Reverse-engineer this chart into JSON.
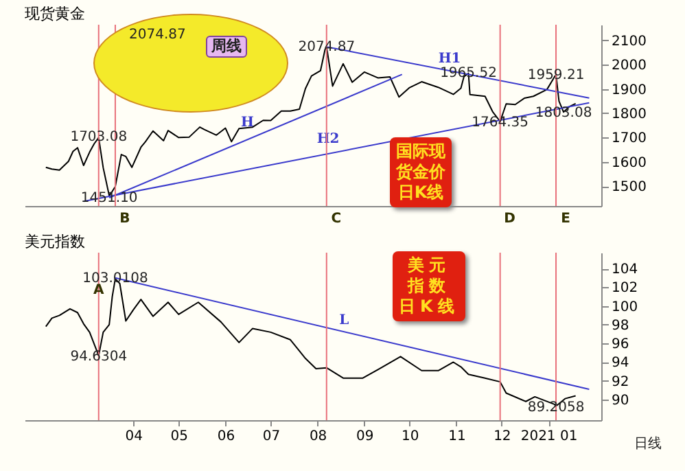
{
  "chart_data": [
    {
      "type": "line",
      "title": "现货黄金",
      "xlim": [
        "2020-01-20",
        "2021-02-05"
      ],
      "ylim": [
        1418,
        2165
      ],
      "yticks": [
        1500,
        1600,
        1700,
        1800,
        1900,
        2000,
        2100
      ],
      "tick_labels": "y",
      "x": [
        "2020-02-03",
        "2020-02-07",
        "2020-02-12",
        "2020-02-18",
        "2020-02-21",
        "2020-02-24",
        "2020-02-28",
        "2020-03-03",
        "2020-03-06",
        "2020-03-09",
        "2020-03-12",
        "2020-03-16",
        "2020-03-18",
        "2020-03-20",
        "2020-03-24",
        "2020-03-27",
        "2020-03-31",
        "2020-04-06",
        "2020-04-09",
        "2020-04-14",
        "2020-04-21",
        "2020-04-24",
        "2020-05-01",
        "2020-05-08",
        "2020-05-15",
        "2020-05-18",
        "2020-05-26",
        "2020-06-01",
        "2020-06-05",
        "2020-06-10",
        "2020-06-19",
        "2020-06-26",
        "2020-07-01",
        "2020-07-08",
        "2020-07-14",
        "2020-07-20",
        "2020-07-24",
        "2020-07-28",
        "2020-08-03",
        "2020-08-06",
        "2020-08-07",
        "2020-08-11",
        "2020-08-18",
        "2020-08-24",
        "2020-09-01",
        "2020-09-10",
        "2020-09-18",
        "2020-09-24",
        "2020-10-01",
        "2020-10-09",
        "2020-10-20",
        "2020-10-30",
        "2020-11-04",
        "2020-11-06",
        "2020-11-09",
        "2020-11-10",
        "2020-11-20",
        "2020-11-25",
        "2020-11-30",
        "2020-12-04",
        "2020-12-10",
        "2020-12-16",
        "2020-12-22",
        "2020-12-31",
        "2021-01-05",
        "2021-01-06",
        "2021-01-08",
        "2021-01-11",
        "2021-01-15",
        "2021-01-19"
      ],
      "series": [
        {
          "color": "#000000",
          "values": [
            1577,
            1570,
            1566,
            1602,
            1643,
            1658,
            1585,
            1640,
            1674,
            1700,
            1576,
            1460,
            1478,
            1498,
            1630,
            1622,
            1577,
            1660,
            1683,
            1727,
            1687,
            1729,
            1700,
            1702,
            1743,
            1733,
            1710,
            1739,
            1683,
            1737,
            1743,
            1771,
            1770,
            1809,
            1809,
            1817,
            1902,
            1954,
            1976,
            2063,
            2074,
            1912,
            2004,
            1928,
            1970,
            1946,
            1950,
            1867,
            1906,
            1930,
            1907,
            1878,
            1903,
            1951,
            1965,
            1877,
            1870,
            1807,
            1766,
            1839,
            1836,
            1862,
            1870,
            1898,
            1950,
            1958,
            1850,
            1805,
            1828,
            1840
          ]
        },
        {
          "name": "H",
          "type": "line",
          "color": "#3a3acc",
          "x": [
            "2020-03-16",
            "2020-09-26"
          ],
          "values": [
            1452,
            1960
          ]
        },
        {
          "name": "H1",
          "type": "line",
          "color": "#3a3acc",
          "x": [
            "2020-08-07",
            "2021-01-28"
          ],
          "values": [
            2074,
            1863
          ]
        },
        {
          "name": "H2",
          "type": "line",
          "color": "#3a3acc",
          "x": [
            "2020-02-28",
            "2021-01-28"
          ],
          "values": [
            1437,
            1843
          ]
        }
      ],
      "ref_lines": [
        {
          "axis": "x",
          "value": "2020-03-09",
          "color": "#e8707a"
        },
        {
          "axis": "x",
          "value": "2020-03-20",
          "label": "B",
          "color": "#e8707a"
        },
        {
          "axis": "x",
          "value": "2020-08-07",
          "label": "C",
          "color": "#e8707a"
        },
        {
          "axis": "x",
          "value": "2020-11-30",
          "label": "D",
          "color": "#e8707a"
        },
        {
          "axis": "x",
          "value": "2021-01-06",
          "label": "E",
          "color": "#e8707a"
        }
      ],
      "annotations": [
        {
          "text": "1703.08",
          "x": "2020-03-09",
          "y": 1703.08
        },
        {
          "text": "1451.10",
          "x": "2020-03-16",
          "y": 1451.1
        },
        {
          "text": "2074.87",
          "x": "2020-08-07",
          "y": 2074.87
        },
        {
          "text": "1965.52",
          "x": "2020-11-09",
          "y": 1965.52
        },
        {
          "text": "1764.35",
          "x": "2020-11-30",
          "y": 1764.35
        },
        {
          "text": "1959.21",
          "x": "2021-01-06",
          "y": 1959.21
        },
        {
          "text": "1803.08",
          "x": "2021-01-11",
          "y": 1803.08
        },
        "周线",
        "2074.87",
        "国际现货金价日K线"
      ]
    },
    {
      "type": "line",
      "title": "美元指数",
      "xlim": [
        "2020-01-20",
        "2021-02-05"
      ],
      "ylim": [
        87.8,
        105.7
      ],
      "yticks": [
        90,
        92,
        94,
        96,
        98,
        100,
        102,
        104
      ],
      "xticks": [
        {
          "value": "2020-04-01",
          "label": "04"
        },
        {
          "value": "2020-05-01",
          "label": "05"
        },
        {
          "value": "2020-06-01",
          "label": "06"
        },
        {
          "value": "2020-07-01",
          "label": "07"
        },
        {
          "value": "2020-08-01",
          "label": "08"
        },
        {
          "value": "2020-09-01",
          "label": "09"
        },
        {
          "value": "2020-10-01",
          "label": "10"
        },
        {
          "value": "2020-11-01",
          "label": "11"
        },
        {
          "value": "2020-12-01",
          "label": "12"
        },
        {
          "value": "2021-01-01",
          "label": "2021 01"
        }
      ],
      "x": [
        "2020-02-03",
        "2020-02-07",
        "2020-02-12",
        "2020-02-19",
        "2020-02-24",
        "2020-02-28",
        "2020-03-03",
        "2020-03-09",
        "2020-03-12",
        "2020-03-16",
        "2020-03-18",
        "2020-03-20",
        "2020-03-23",
        "2020-03-27",
        "2020-04-01",
        "2020-04-06",
        "2020-04-14",
        "2020-04-24",
        "2020-05-01",
        "2020-05-14",
        "2020-05-29",
        "2020-06-10",
        "2020-06-19",
        "2020-07-01",
        "2020-07-14",
        "2020-07-24",
        "2020-07-31",
        "2020-08-07",
        "2020-08-18",
        "2020-08-31",
        "2020-09-11",
        "2020-09-25",
        "2020-10-09",
        "2020-10-20",
        "2020-10-30",
        "2020-11-04",
        "2020-11-09",
        "2020-11-20",
        "2020-11-30",
        "2020-12-04",
        "2020-12-17",
        "2020-12-23",
        "2021-01-05",
        "2021-01-06",
        "2021-01-12",
        "2021-01-19"
      ],
      "series": [
        {
          "color": "#000000",
          "values": [
            97.8,
            98.7,
            99.0,
            99.7,
            99.3,
            98.1,
            97.2,
            94.7,
            97.2,
            98.0,
            101.0,
            102.9,
            102.4,
            98.4,
            99.6,
            100.7,
            98.9,
            100.4,
            99.1,
            100.4,
            98.3,
            96.1,
            97.6,
            97.2,
            96.4,
            94.4,
            93.3,
            93.4,
            92.3,
            92.3,
            93.3,
            94.6,
            93.1,
            93.1,
            94.0,
            93.5,
            92.7,
            92.3,
            91.9,
            90.7,
            89.8,
            90.3,
            89.5,
            89.3,
            90.1,
            90.4
          ]
        },
        {
          "name": "L",
          "type": "line",
          "color": "#3a3acc",
          "x": [
            "2020-03-20",
            "2021-01-28"
          ],
          "values": [
            103.0,
            91.1
          ]
        }
      ],
      "ref_lines": [
        {
          "axis": "x",
          "value": "2020-03-09",
          "label": "A",
          "color": "#e8707a"
        },
        {
          "axis": "x",
          "value": "2020-08-07",
          "color": "#e8707a"
        },
        {
          "axis": "x",
          "value": "2020-11-30",
          "color": "#e8707a"
        },
        {
          "axis": "x",
          "value": "2021-01-06",
          "color": "#e8707a"
        }
      ],
      "annotations": [
        {
          "text": "103.0108",
          "x": "2020-03-20",
          "y": 103.0108
        },
        {
          "text": "94.6304",
          "x": "2020-03-09",
          "y": 94.6304
        },
        {
          "text": "89.2058",
          "x": "2021-01-06",
          "y": 89.2058
        },
        "美元指数日K线",
        "日线"
      ]
    }
  ]
}
